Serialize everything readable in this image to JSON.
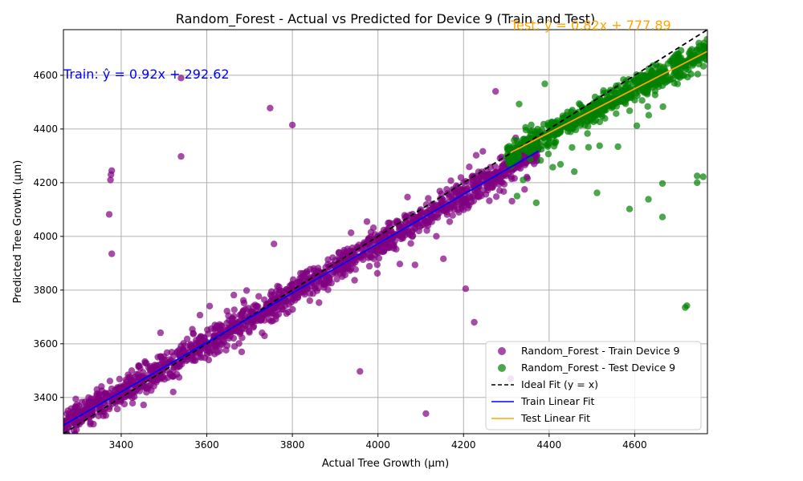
{
  "chart_data": {
    "type": "scatter",
    "title": "Random_Forest - Actual vs Predicted for Device 9 (Train and Test)",
    "xlabel": "Actual Tree Growth (µm)",
    "ylabel": "Predicted Tree Growth (µm)",
    "xlim": [
      3265,
      4770
    ],
    "ylim": [
      3265,
      4770
    ],
    "xticks": [
      3400,
      3600,
      3800,
      4000,
      4200,
      4400,
      4600
    ],
    "yticks": [
      3400,
      3600,
      3800,
      4000,
      4200,
      4400,
      4600
    ],
    "grid": true,
    "legend_position": "bottom-right",
    "series": [
      {
        "name": "Random_Forest - Train Device 9",
        "color": "#800080",
        "marker": "circle",
        "x_range": [
          3265,
          4375
        ],
        "density_note": "dense cloud along the diagonal",
        "sample_points": [
          [
            3300,
            3310
          ],
          [
            3350,
            3370
          ],
          [
            3400,
            3420
          ],
          [
            3450,
            3460
          ],
          [
            3500,
            3520
          ],
          [
            3550,
            3570
          ],
          [
            3600,
            3600
          ],
          [
            3650,
            3660
          ],
          [
            3700,
            3700
          ],
          [
            3750,
            3760
          ],
          [
            3800,
            3820
          ],
          [
            3850,
            3880
          ],
          [
            3900,
            3910
          ],
          [
            3950,
            3950
          ],
          [
            4000,
            4000
          ],
          [
            4050,
            4040
          ],
          [
            4100,
            4100
          ],
          [
            4150,
            4140
          ],
          [
            4200,
            4200
          ],
          [
            4250,
            4230
          ],
          [
            4300,
            4280
          ],
          [
            4350,
            4300
          ],
          [
            3372,
            4082
          ],
          [
            3375,
            4210
          ],
          [
            3376,
            4230
          ],
          [
            3378,
            4245
          ],
          [
            3378,
            3935
          ],
          [
            3540,
            4298
          ],
          [
            3540,
            4590
          ],
          [
            3748,
            4478
          ],
          [
            3800,
            4415
          ],
          [
            4112,
            3340
          ],
          [
            4225,
            3680
          ],
          [
            4310,
            3470
          ],
          [
            4205,
            3805
          ],
          [
            3958,
            3497
          ],
          [
            4275,
            4540
          ]
        ]
      },
      {
        "name": "Random_Forest - Test Device 9",
        "color": "#008000",
        "marker": "circle",
        "x_range": [
          4300,
          4770
        ],
        "density_note": "dense cloud along the diagonal",
        "sample_points": [
          [
            4320,
            4330
          ],
          [
            4350,
            4360
          ],
          [
            4400,
            4410
          ],
          [
            4450,
            4450
          ],
          [
            4500,
            4490
          ],
          [
            4550,
            4540
          ],
          [
            4600,
            4580
          ],
          [
            4650,
            4640
          ],
          [
            4700,
            4680
          ],
          [
            4750,
            4720
          ],
          [
            4512,
            4162
          ],
          [
            4588,
            4102
          ],
          [
            4665,
            4072
          ],
          [
            4718,
            3735
          ],
          [
            4722,
            3742
          ],
          [
            4746,
            4200
          ],
          [
            4746,
            4225
          ],
          [
            4760,
            4222
          ],
          [
            4632,
            4138
          ],
          [
            4665,
            4197
          ],
          [
            4390,
            4568
          ],
          [
            4330,
            4493
          ],
          [
            4325,
            4150
          ],
          [
            4370,
            4125
          ],
          [
            4380,
            4283
          ]
        ]
      }
    ],
    "lines": [
      {
        "name": "Ideal Fit (y = x)",
        "color": "#000000",
        "style": "dashed",
        "slope": 1.0,
        "intercept": 0,
        "x_range": [
          3265,
          4770
        ]
      },
      {
        "name": "Train Linear Fit",
        "color": "#0000ff",
        "style": "solid",
        "slope": 0.92,
        "intercept": 292.62,
        "x_range": [
          3265,
          4375
        ]
      },
      {
        "name": "Test Linear Fit",
        "color": "#ffa500",
        "style": "solid",
        "slope": 0.82,
        "intercept": 777.89,
        "x_range": [
          4310,
          4770
        ]
      }
    ],
    "annotations": [
      {
        "text": "Train: ŷ = 0.92x + 292.62",
        "color": "#0000ff"
      },
      {
        "text": "Test: ŷ = 0.82x + 777.89",
        "color": "#ffa500"
      }
    ]
  }
}
